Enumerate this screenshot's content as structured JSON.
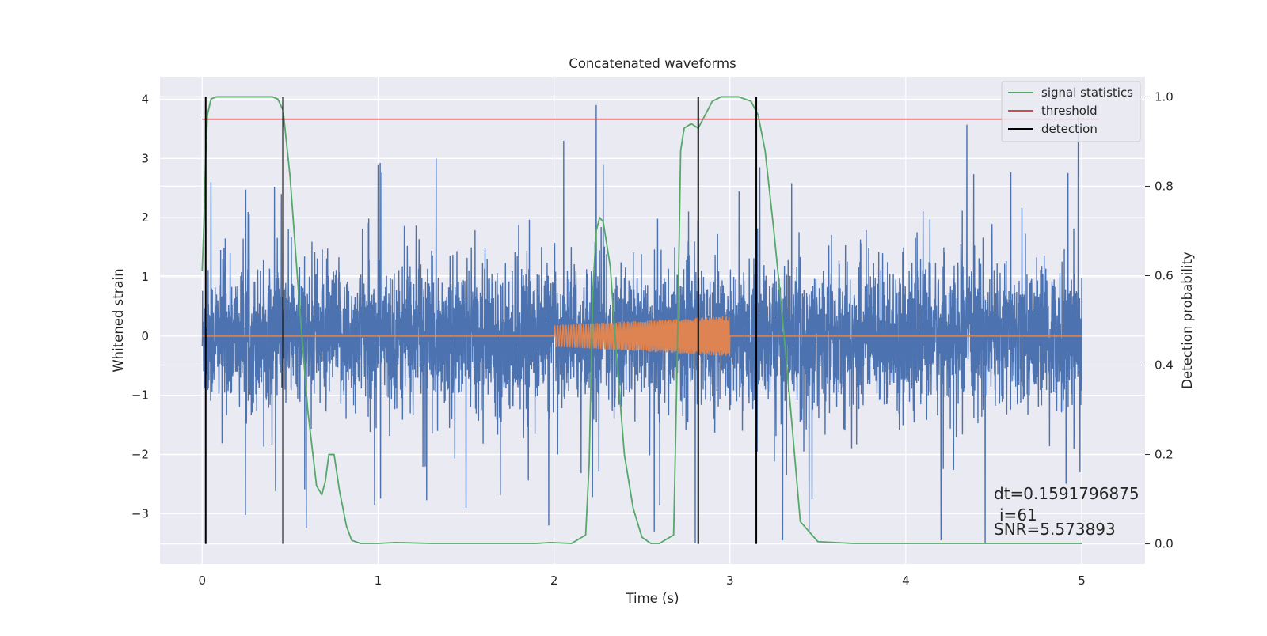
{
  "chart_data": {
    "type": "line",
    "title": "Concatenated waveforms",
    "xlabel": "Time (s)",
    "ylabel": "Whitened strain",
    "y2label": "Detection probability",
    "xlim": [
      -0.24,
      5.36
    ],
    "ylim": [
      -3.85,
      4.38
    ],
    "y2lim": [
      -0.045,
      1.045
    ],
    "xticks": [
      0,
      1,
      2,
      3,
      4,
      5
    ],
    "xtick_labels": [
      "0",
      "1",
      "2",
      "3",
      "4",
      "5"
    ],
    "yticks": [
      -3,
      -2,
      -1,
      0,
      1,
      2,
      3,
      4
    ],
    "ytick_labels": [
      "−3",
      "−2",
      "−1",
      "0",
      "1",
      "2",
      "3",
      "4"
    ],
    "y2ticks": [
      0.0,
      0.2,
      0.4,
      0.6,
      0.8,
      1.0
    ],
    "y2tick_labels": [
      "0.0",
      "0.2",
      "0.4",
      "0.6",
      "0.8",
      "1.0"
    ],
    "grid": true,
    "legend_placement": "upper right",
    "series": [
      {
        "key": "noise",
        "axis": "left",
        "color": "#4c72b0",
        "description_kind": "noisy strain",
        "x_range": [
          0,
          5
        ],
        "amplitude_core": 1.0,
        "spikes": [
          [
            0.05,
            2.6
          ],
          [
            0.45,
            2.4
          ],
          [
            1.0,
            2.9
          ],
          [
            1.33,
            3.0
          ],
          [
            2.24,
            3.9
          ],
          [
            2.28,
            2.9
          ],
          [
            3.17,
            2.85
          ],
          [
            4.98,
            3.7
          ],
          [
            1.97,
            -3.2
          ],
          [
            2.57,
            -3.3
          ],
          [
            3.3,
            -3.45
          ],
          [
            3.45,
            -3.3
          ],
          [
            1.5,
            -2.9
          ],
          [
            0.98,
            -2.85
          ],
          [
            4.99,
            -2.3
          ]
        ]
      },
      {
        "key": "injected",
        "axis": "left",
        "color": "#dd8452",
        "description_kind": "chirp",
        "chirp_start": 2.0,
        "chirp_end": 3.0,
        "amp_start": 0.18,
        "amp_end": 0.34
      },
      {
        "key": "signal_statistics",
        "name": "signal statistics",
        "axis": "right",
        "color": "#55a868",
        "x": [
          0,
          0.01,
          0.02,
          0.03,
          0.05,
          0.08,
          0.12,
          0.2,
          0.3,
          0.4,
          0.43,
          0.46,
          0.5,
          0.55,
          0.6,
          0.65,
          0.68,
          0.7,
          0.72,
          0.75,
          0.78,
          0.82,
          0.85,
          0.9,
          1.0,
          1.1,
          1.3,
          1.6,
          1.9,
          1.98,
          2.1,
          2.18,
          2.2,
          2.22,
          2.24,
          2.26,
          2.28,
          2.32,
          2.35,
          2.4,
          2.45,
          2.5,
          2.55,
          2.6,
          2.68,
          2.7,
          2.72,
          2.74,
          2.78,
          2.82,
          2.86,
          2.9,
          2.95,
          3.05,
          3.12,
          3.16,
          3.2,
          3.25,
          3.3,
          3.35,
          3.4,
          3.5,
          3.7,
          4.0,
          4.5,
          5.0
        ],
        "y": [
          0.61,
          0.72,
          0.87,
          0.96,
          0.995,
          1.0,
          1.0,
          1.0,
          1.0,
          1.0,
          0.995,
          0.97,
          0.82,
          0.55,
          0.3,
          0.13,
          0.11,
          0.14,
          0.2,
          0.2,
          0.12,
          0.04,
          0.008,
          0.001,
          0.001,
          0.003,
          0.001,
          0.001,
          0.001,
          0.003,
          0.001,
          0.02,
          0.18,
          0.56,
          0.7,
          0.73,
          0.72,
          0.62,
          0.45,
          0.2,
          0.08,
          0.015,
          0.001,
          0.001,
          0.02,
          0.4,
          0.88,
          0.93,
          0.94,
          0.93,
          0.96,
          0.99,
          1.0,
          1.0,
          0.99,
          0.96,
          0.88,
          0.7,
          0.5,
          0.28,
          0.05,
          0.005,
          0.001,
          0.001,
          0.001,
          0.001
        ]
      },
      {
        "key": "threshold",
        "name": "threshold",
        "axis": "right",
        "color": "#c44e52",
        "x": [
          0,
          5.1
        ],
        "value": 0.95
      },
      {
        "key": "detection",
        "name": "detection",
        "axis": "right",
        "color": "#000000",
        "positions": [
          0.02,
          0.46,
          2.82,
          3.15
        ],
        "y_range": [
          0.0,
          1.0
        ]
      }
    ],
    "annotations": [
      "dt=0.1591796875",
      "i=61",
      "SNR=5.573893"
    ]
  }
}
